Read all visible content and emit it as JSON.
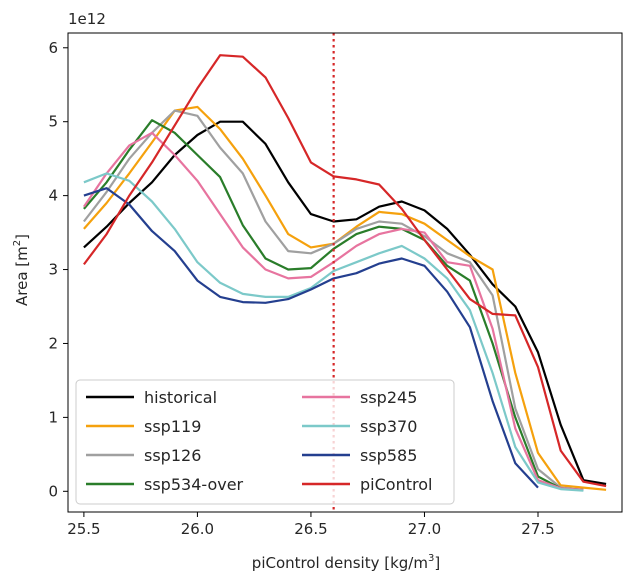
{
  "chart_data": {
    "type": "line",
    "xlabel": "piControl density [kg/m",
    "xlabel_sup": "3",
    "xlabel_end": "]",
    "ylabel": "Area [m",
    "ylabel_sup": "2",
    "ylabel_end": "]",
    "y_multiplier": "1e12",
    "xlim": [
      25.43,
      27.87
    ],
    "ylim": [
      -0.28,
      6.2
    ],
    "xticks": [
      25.5,
      26.0,
      26.5,
      27.0,
      27.5
    ],
    "xtick_labels": [
      "25.5",
      "26.0",
      "26.5",
      "27.0",
      "27.5"
    ],
    "yticks": [
      0,
      1,
      2,
      3,
      4,
      5,
      6
    ],
    "ytick_labels": [
      "0",
      "1",
      "2",
      "3",
      "4",
      "5",
      "6"
    ],
    "grid": false,
    "legend_position": "lower-left",
    "legend_columns": 2,
    "vline": {
      "x": 26.6,
      "color": "#d62728",
      "style": "dotted"
    },
    "series": [
      {
        "name": "historical",
        "color": "#000000",
        "x": [
          25.5,
          25.6,
          25.7,
          25.8,
          25.9,
          26.0,
          26.1,
          26.2,
          26.3,
          26.4,
          26.5,
          26.6,
          26.7,
          26.8,
          26.9,
          27.0,
          27.1,
          27.2,
          27.3,
          27.4,
          27.5,
          27.6,
          27.7,
          27.8
        ],
        "y": [
          3.3,
          3.58,
          3.9,
          4.18,
          4.55,
          4.82,
          5.0,
          5.0,
          4.7,
          4.18,
          3.75,
          3.65,
          3.68,
          3.85,
          3.92,
          3.8,
          3.55,
          3.2,
          2.8,
          2.5,
          1.88,
          0.9,
          0.15,
          0.1
        ]
      },
      {
        "name": "ssp119",
        "color": "#f5a10d",
        "x": [
          25.5,
          25.6,
          25.7,
          25.8,
          25.9,
          26.0,
          26.1,
          26.2,
          26.3,
          26.4,
          26.5,
          26.6,
          26.7,
          26.8,
          26.9,
          27.0,
          27.1,
          27.2,
          27.3,
          27.4,
          27.5,
          27.6,
          27.7,
          27.8
        ],
        "y": [
          3.55,
          3.9,
          4.3,
          4.72,
          5.15,
          5.2,
          4.9,
          4.5,
          4.0,
          3.48,
          3.3,
          3.35,
          3.58,
          3.78,
          3.75,
          3.62,
          3.4,
          3.18,
          3.0,
          1.6,
          0.52,
          0.08,
          0.05,
          0.02
        ]
      },
      {
        "name": "ssp126",
        "color": "#a0a0a0",
        "x": [
          25.5,
          25.6,
          25.7,
          25.8,
          25.9,
          26.0,
          26.1,
          26.2,
          26.3,
          26.4,
          26.5,
          26.6,
          26.7,
          26.8,
          26.9,
          27.0,
          27.1,
          27.2,
          27.3,
          27.4,
          27.5,
          27.6,
          27.7
        ],
        "y": [
          3.65,
          4.05,
          4.5,
          4.85,
          5.15,
          5.08,
          4.65,
          4.3,
          3.65,
          3.25,
          3.22,
          3.35,
          3.55,
          3.65,
          3.62,
          3.45,
          3.22,
          3.1,
          2.65,
          1.12,
          0.3,
          0.05,
          0.02
        ]
      },
      {
        "name": "ssp534-over",
        "color": "#2a7d2a",
        "x": [
          25.5,
          25.6,
          25.7,
          25.8,
          25.9,
          26.0,
          26.1,
          26.2,
          26.3,
          26.4,
          26.5,
          26.6,
          26.7,
          26.8,
          26.9,
          27.0,
          27.1,
          27.2,
          27.3,
          27.4,
          27.5,
          27.6,
          27.7
        ],
        "y": [
          3.82,
          4.18,
          4.62,
          5.02,
          4.85,
          4.55,
          4.25,
          3.6,
          3.15,
          3.0,
          3.02,
          3.28,
          3.48,
          3.58,
          3.55,
          3.4,
          3.05,
          2.85,
          2.0,
          1.0,
          0.2,
          0.04,
          0.02
        ]
      },
      {
        "name": "ssp245",
        "color": "#e7749f",
        "x": [
          25.5,
          25.6,
          25.7,
          25.8,
          25.9,
          26.0,
          26.1,
          26.2,
          26.3,
          26.4,
          26.5,
          26.6,
          26.7,
          26.8,
          26.9,
          27.0,
          27.1,
          27.2,
          27.3,
          27.4,
          27.5,
          27.6,
          27.7
        ],
        "y": [
          3.85,
          4.3,
          4.68,
          4.85,
          4.55,
          4.2,
          3.75,
          3.3,
          3.0,
          2.88,
          2.9,
          3.1,
          3.32,
          3.48,
          3.55,
          3.5,
          3.1,
          3.05,
          2.2,
          0.85,
          0.15,
          0.04,
          0.02
        ]
      },
      {
        "name": "ssp370",
        "color": "#7cc9c9",
        "x": [
          25.5,
          25.6,
          25.7,
          25.8,
          25.9,
          26.0,
          26.1,
          26.2,
          26.3,
          26.4,
          26.5,
          26.6,
          26.7,
          26.8,
          26.9,
          27.0,
          27.1,
          27.2,
          27.3,
          27.4,
          27.5,
          27.6,
          27.7
        ],
        "y": [
          4.18,
          4.3,
          4.2,
          3.92,
          3.55,
          3.1,
          2.82,
          2.67,
          2.63,
          2.63,
          2.75,
          2.98,
          3.1,
          3.22,
          3.32,
          3.15,
          2.88,
          2.45,
          1.6,
          0.6,
          0.12,
          0.03,
          0.01
        ]
      },
      {
        "name": "ssp585",
        "color": "#243f8f",
        "x": [
          25.5,
          25.6,
          25.7,
          25.8,
          25.9,
          26.0,
          26.1,
          26.2,
          26.3,
          26.4,
          26.5,
          26.6,
          26.7,
          26.8,
          26.9,
          27.0,
          27.1,
          27.2,
          27.3,
          27.4,
          27.5
        ],
        "y": [
          4.0,
          4.1,
          3.88,
          3.52,
          3.25,
          2.85,
          2.63,
          2.56,
          2.55,
          2.6,
          2.73,
          2.88,
          2.95,
          3.08,
          3.15,
          3.05,
          2.7,
          2.22,
          1.22,
          0.38,
          0.05
        ]
      },
      {
        "name": "piControl",
        "color": "#d62728",
        "x": [
          25.5,
          25.6,
          25.7,
          25.8,
          25.9,
          26.0,
          26.1,
          26.2,
          26.3,
          26.4,
          26.5,
          26.6,
          26.7,
          26.8,
          26.9,
          27.0,
          27.1,
          27.2,
          27.3,
          27.4,
          27.5,
          27.6,
          27.7,
          27.8
        ],
        "y": [
          3.07,
          3.48,
          4.0,
          4.45,
          4.95,
          5.45,
          5.9,
          5.88,
          5.6,
          5.05,
          4.45,
          4.26,
          4.22,
          4.15,
          3.82,
          3.4,
          3.0,
          2.6,
          2.4,
          2.38,
          1.68,
          0.55,
          0.13,
          0.07
        ]
      }
    ]
  }
}
